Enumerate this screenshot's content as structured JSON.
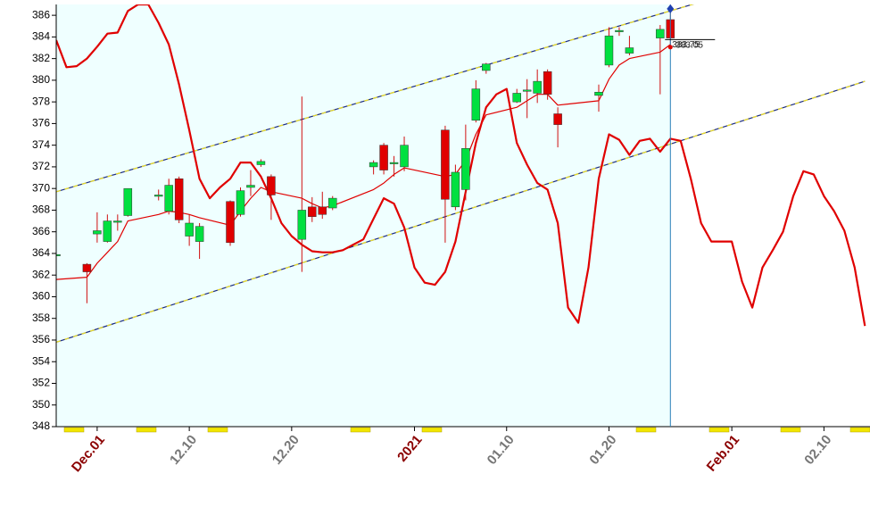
{
  "chart_data": {
    "type": "candlestick",
    "ylim": [
      348,
      387
    ],
    "yticks": [
      348,
      350,
      352,
      354,
      356,
      358,
      360,
      362,
      364,
      366,
      368,
      370,
      372,
      374,
      376,
      378,
      380,
      382,
      384,
      386
    ],
    "categories": [
      null,
      null,
      null,
      null,
      "Dec.01",
      null,
      null,
      null,
      null,
      null,
      null,
      null,
      null,
      "12.10",
      null,
      null,
      null,
      null,
      null,
      null,
      null,
      null,
      null,
      "12.20",
      null,
      null,
      null,
      null,
      null,
      null,
      null,
      null,
      null,
      null,
      null,
      "2021",
      null,
      null,
      null,
      null,
      null,
      null,
      null,
      null,
      "01.10",
      null,
      null,
      null,
      null,
      null,
      null,
      null,
      null,
      null,
      "01.20",
      null,
      null,
      null,
      null,
      null,
      null,
      null,
      null,
      null,
      null,
      null,
      "Feb.01",
      null,
      null,
      null,
      null,
      null,
      null,
      null,
      null,
      "02.10",
      null,
      null,
      null,
      null
    ],
    "candles": {
      "up_color": "#00e040",
      "down_color": "#e00000",
      "flat_color": "#555555",
      "wick_color": "#d01010",
      "open": [
        363.8,
        null,
        null,
        363.0,
        365.8,
        365.1,
        366.9,
        367.5,
        null,
        null,
        369.3,
        367.9,
        370.9,
        365.6,
        365.1,
        null,
        null,
        368.8,
        367.6,
        370.1,
        372.2,
        371.1,
        null,
        null,
        365.3,
        368.3,
        368.3,
        368.2,
        null,
        null,
        null,
        372.0,
        374.0,
        372.3,
        372.0,
        null,
        null,
        null,
        375.4,
        368.3,
        369.9,
        376.3,
        380.9,
        null,
        null,
        378.0,
        379.0,
        378.8,
        380.8,
        376.9,
        null,
        null,
        null,
        378.6,
        381.4,
        384.5,
        382.5,
        null,
        null,
        383.9,
        385.6,
        null,
        null,
        null,
        null,
        null,
        null,
        null,
        null,
        null,
        null,
        null,
        null,
        null,
        null,
        null,
        null,
        null,
        null,
        null
      ],
      "high": [
        364.0,
        null,
        null,
        363.1,
        367.8,
        367.6,
        367.6,
        370.0,
        null,
        null,
        369.9,
        370.9,
        371.1,
        367.6,
        366.8,
        null,
        null,
        368.9,
        370.1,
        371.7,
        372.7,
        371.3,
        null,
        null,
        378.5,
        369.2,
        369.7,
        369.3,
        null,
        null,
        null,
        372.6,
        374.2,
        373.0,
        374.8,
        null,
        null,
        null,
        375.8,
        372.2,
        375.9,
        380.0,
        381.6,
        null,
        null,
        379.2,
        380.1,
        381.0,
        381.0,
        377.5,
        null,
        null,
        null,
        379.6,
        384.9,
        384.9,
        384.1,
        null,
        null,
        385.1,
        386.6,
        null,
        null,
        null,
        null,
        null,
        null,
        null,
        null,
        null,
        null,
        null,
        null,
        null,
        null,
        null,
        null,
        null,
        null,
        null
      ],
      "low": [
        363.7,
        null,
        null,
        359.4,
        365.0,
        365.0,
        366.1,
        367.4,
        null,
        null,
        368.9,
        367.6,
        366.8,
        364.7,
        363.5,
        null,
        null,
        364.7,
        367.4,
        369.3,
        372.0,
        367.1,
        null,
        null,
        362.3,
        366.9,
        367.2,
        368.0,
        null,
        null,
        null,
        371.3,
        371.3,
        371.1,
        371.6,
        null,
        null,
        null,
        365.0,
        368.0,
        368.9,
        376.1,
        380.6,
        null,
        null,
        377.9,
        376.5,
        377.9,
        378.2,
        373.8,
        null,
        null,
        null,
        377.1,
        381.2,
        384.1,
        382.3,
        null,
        null,
        378.7,
        383.1,
        null,
        null,
        null,
        null,
        null,
        null,
        null,
        null,
        null,
        null,
        null,
        null,
        null,
        null,
        null,
        null,
        null,
        null,
        null
      ],
      "close": [
        363.9,
        null,
        null,
        362.3,
        366.1,
        367.0,
        367.0,
        370.0,
        null,
        null,
        369.4,
        370.3,
        367.1,
        366.8,
        366.5,
        null,
        null,
        365.0,
        369.8,
        370.3,
        372.5,
        369.4,
        null,
        null,
        368.0,
        367.4,
        367.6,
        369.1,
        null,
        null,
        null,
        372.4,
        371.7,
        372.4,
        374.0,
        null,
        null,
        null,
        369.0,
        371.5,
        373.7,
        379.2,
        381.5,
        null,
        null,
        378.8,
        379.1,
        379.9,
        378.7,
        375.9,
        null,
        null,
        null,
        378.9,
        384.1,
        384.6,
        383.0,
        null,
        null,
        384.7,
        383.9,
        null,
        null,
        null,
        null,
        null,
        null,
        null,
        null,
        null,
        null,
        null,
        null,
        null,
        null,
        null,
        null,
        null,
        null,
        null
      ]
    },
    "lines": [
      {
        "color": "#e00000",
        "width": 1.2,
        "values": [
          361.6,
          null,
          null,
          361.8,
          363.1,
          364.1,
          365.1,
          367.0,
          null,
          null,
          367.6,
          367.9,
          367.8,
          367.6,
          367.3,
          null,
          null,
          366.6,
          367.9,
          369.1,
          370.1,
          369.7,
          null,
          null,
          369.1,
          368.6,
          368.2,
          368.4,
          null,
          null,
          null,
          369.9,
          370.5,
          371.3,
          371.9,
          null,
          null,
          null,
          371.1,
          371.3,
          372.6,
          375.0,
          376.8,
          null,
          null,
          377.5,
          378.1,
          378.7,
          378.7,
          377.7,
          null,
          null,
          null,
          378.1,
          380.1,
          381.4,
          382.0,
          null,
          null,
          382.6,
          383.3,
          null,
          null,
          null,
          null,
          null,
          null,
          null,
          null,
          null,
          null,
          null,
          null,
          null,
          null,
          null,
          null,
          null,
          null,
          null
        ]
      },
      {
        "color": "#e00000",
        "width": 2.2,
        "values": [
          383.7,
          381.2,
          381.3,
          382.0,
          383.1,
          384.3,
          384.4,
          386.4,
          387.0,
          387.0,
          385.3,
          383.3,
          379.6,
          375.4,
          370.9,
          369.1,
          370.1,
          370.9,
          372.4,
          372.4,
          371.1,
          369.1,
          366.8,
          365.6,
          364.8,
          364.2,
          364.1,
          364.1,
          364.3,
          364.8,
          365.3,
          367.2,
          369.1,
          368.6,
          366.4,
          362.7,
          361.3,
          361.1,
          362.3,
          365.1,
          369.7,
          374.2,
          377.5,
          378.7,
          379.2,
          374.2,
          372.2,
          370.5,
          369.9,
          366.8,
          359.0,
          357.6,
          362.7,
          370.9,
          375.0,
          374.5,
          373.1,
          374.4,
          374.6,
          373.4,
          374.6,
          374.4,
          370.9,
          366.8,
          365.1,
          365.1,
          365.1,
          361.4,
          359.0,
          362.7,
          364.3,
          366.0,
          369.3,
          371.6,
          371.3,
          369.3,
          367.9,
          366.1,
          362.7,
          357.3
        ]
      }
    ],
    "channels": [
      {
        "color": "#1a2a80",
        "dash_color": "#f0e020",
        "values": [
          369.7,
          391.7
        ]
      },
      {
        "color": "#1a2a80",
        "dash_color": "#f0e020",
        "values": [
          355.8,
          379.9
        ]
      }
    ],
    "cursor_color": "#2a7fb8",
    "marker_color": "#2040b0",
    "annotations": [
      {
        "label": "383.75",
        "value": 383.75
      },
      {
        "label": "383.05",
        "value": 383.05
      }
    ]
  }
}
